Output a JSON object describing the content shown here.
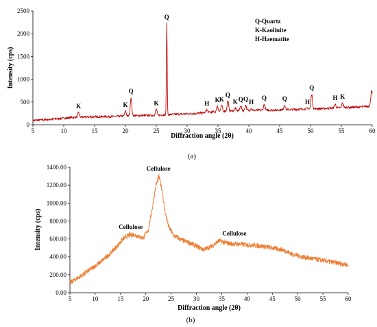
{
  "chart_data": [
    {
      "type": "line",
      "caption": "(a)",
      "xlabel": "Diffraction angle (2θ)",
      "ylabel": "Intensity (cps)",
      "xlim": [
        5,
        60
      ],
      "ylim": [
        0,
        2500
      ],
      "xticks": [
        "5",
        "10",
        "15",
        "20",
        "25",
        "30",
        "35",
        "40",
        "45",
        "50",
        "55",
        "60"
      ],
      "yticks": [
        "0",
        "500",
        "1000",
        "1500",
        "2000",
        "2500"
      ],
      "grid": false,
      "line_color": "#c00000",
      "legend": [
        "Q-Quartz",
        "K-Kaolinite",
        "H-Haematite"
      ],
      "legend_position": "top-right",
      "baseline": [
        [
          5,
          95
        ],
        [
          8,
          120
        ],
        [
          10,
          145
        ],
        [
          12,
          165
        ],
        [
          15,
          175
        ],
        [
          18,
          180
        ],
        [
          20,
          195
        ],
        [
          22,
          200
        ],
        [
          24,
          205
        ],
        [
          26,
          215
        ],
        [
          28,
          230
        ],
        [
          30,
          240
        ],
        [
          32,
          255
        ],
        [
          34,
          280
        ],
        [
          36,
          300
        ],
        [
          38,
          310
        ],
        [
          40,
          315
        ],
        [
          42,
          320
        ],
        [
          44,
          325
        ],
        [
          46,
          330
        ],
        [
          48,
          340
        ],
        [
          50,
          350
        ],
        [
          52,
          355
        ],
        [
          54,
          370
        ],
        [
          56,
          380
        ],
        [
          58,
          390
        ],
        [
          59.5,
          410
        ],
        [
          60,
          430
        ]
      ],
      "peaks": [
        {
          "x": 12.4,
          "y": 270,
          "label": "K"
        },
        {
          "x": 20.0,
          "y": 300,
          "label": "K"
        },
        {
          "x": 20.9,
          "y": 600,
          "label": "Q"
        },
        {
          "x": 25.0,
          "y": 340,
          "label": "K"
        },
        {
          "x": 26.7,
          "y": 2230,
          "label": "Q"
        },
        {
          "x": 33.2,
          "y": 330,
          "label": "H"
        },
        {
          "x": 34.9,
          "y": 410,
          "label": "K"
        },
        {
          "x": 35.6,
          "y": 420,
          "label": "K"
        },
        {
          "x": 36.6,
          "y": 520,
          "label": "Q"
        },
        {
          "x": 37.8,
          "y": 370,
          "label": "K"
        },
        {
          "x": 38.7,
          "y": 420,
          "label": "Q"
        },
        {
          "x": 39.5,
          "y": 430,
          "label": "Q"
        },
        {
          "x": 40.4,
          "y": 360,
          "label": "H"
        },
        {
          "x": 42.5,
          "y": 450,
          "label": "Q"
        },
        {
          "x": 45.8,
          "y": 440,
          "label": "Q"
        },
        {
          "x": 49.5,
          "y": 360,
          "label": "H"
        },
        {
          "x": 50.2,
          "y": 680,
          "label": "Q"
        },
        {
          "x": 54.0,
          "y": 450,
          "label": "H"
        },
        {
          "x": 55.2,
          "y": 480,
          "label": "K"
        },
        {
          "x": 59.9,
          "y": 760,
          "label": ""
        }
      ]
    },
    {
      "type": "line",
      "caption": "(b)",
      "xlabel": "Diffraction angle (2θ)",
      "ylabel": "Intensity (cps)",
      "xlim": [
        5,
        60
      ],
      "ylim": [
        0,
        1400
      ],
      "xticks": [
        "5",
        "10",
        "15",
        "20",
        "25",
        "30",
        "35",
        "40",
        "45",
        "50",
        "55",
        "60"
      ],
      "yticks": [
        "0.00",
        "200.00",
        "400.00",
        "600.00",
        "800.00",
        "1000.00",
        "1200.00",
        "1400.00"
      ],
      "grid": false,
      "line_color": "#ed7d31",
      "curve": [
        [
          5,
          110
        ],
        [
          7,
          180
        ],
        [
          9,
          260
        ],
        [
          11,
          340
        ],
        [
          13,
          440
        ],
        [
          14.5,
          530
        ],
        [
          15.5,
          600
        ],
        [
          16.5,
          640
        ],
        [
          17.5,
          650
        ],
        [
          18.5,
          630
        ],
        [
          19.5,
          610
        ],
        [
          20.5,
          700
        ],
        [
          21.3,
          950
        ],
        [
          22.0,
          1200
        ],
        [
          22.6,
          1300
        ],
        [
          23.2,
          1150
        ],
        [
          23.8,
          900
        ],
        [
          24.5,
          740
        ],
        [
          25.5,
          640
        ],
        [
          27,
          590
        ],
        [
          28.5,
          560
        ],
        [
          30,
          520
        ],
        [
          31.5,
          480
        ],
        [
          33,
          520
        ],
        [
          34.5,
          580
        ],
        [
          35.5,
          560
        ],
        [
          37,
          545
        ],
        [
          39,
          540
        ],
        [
          41,
          530
        ],
        [
          43,
          520
        ],
        [
          45,
          500
        ],
        [
          47,
          480
        ],
        [
          49,
          430
        ],
        [
          51,
          400
        ],
        [
          53,
          380
        ],
        [
          55,
          360
        ],
        [
          57,
          340
        ],
        [
          59,
          320
        ],
        [
          60,
          310
        ]
      ],
      "annotations": [
        {
          "x": 17,
          "y": 710,
          "label": "Cellulose"
        },
        {
          "x": 22.5,
          "y": 1360,
          "label": "Cellulose"
        },
        {
          "x": 37.5,
          "y": 640,
          "label": "Cellulose"
        }
      ]
    }
  ]
}
